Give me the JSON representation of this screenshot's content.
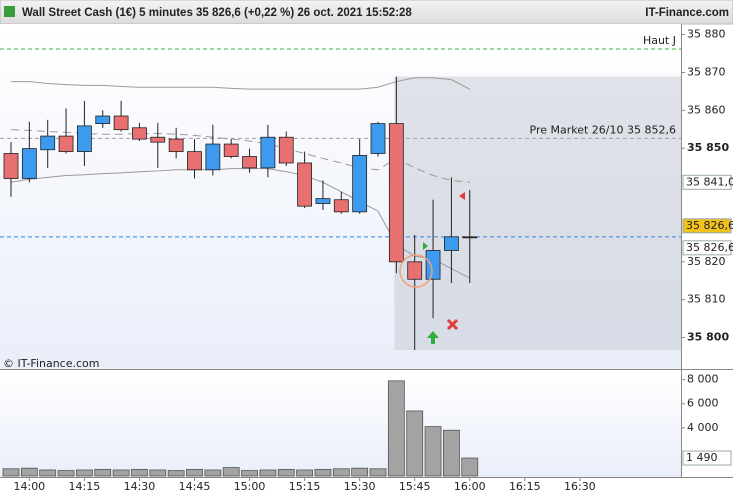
{
  "header": {
    "title": "Wall Street Cash (1€) 5 minutes 35 826,6 (+0,22 %) 26 oct. 2021 15:52:28",
    "brand": "IT-Finance.com"
  },
  "chart_data": [
    {
      "type": "candlestick",
      "watermark": "© IT-Finance.com",
      "categories": [
        null,
        "14:00",
        null,
        null,
        "14:15",
        null,
        null,
        "14:30",
        null,
        null,
        "14:45",
        null,
        null,
        "15:00",
        null,
        null,
        "15:15",
        null,
        null,
        "15:30",
        null,
        null,
        "15:45",
        null,
        null,
        "16:00",
        null,
        null,
        "16:15",
        null,
        null,
        "16:30",
        null,
        null,
        null,
        null
      ],
      "open": [
        35848.6,
        35842.0,
        35849.6,
        35853.2,
        35849.1,
        35856.5,
        35858.5,
        35855.4,
        35852.9,
        35852.4,
        35849.1,
        35844.3,
        35851.1,
        35847.8,
        35844.8,
        35852.9,
        35846.1,
        35835.4,
        35836.4,
        35833.2,
        35848.6,
        35856.5,
        35820.0,
        35815.4,
        35823.0,
        35826.6,
        null,
        null,
        null,
        null,
        null,
        null,
        null,
        null,
        null,
        null
      ],
      "high": [
        35851.6,
        35857.0,
        35857.5,
        35860.5,
        35862.5,
        35860.0,
        35862.5,
        35856.7,
        35856.7,
        35855.4,
        35852.4,
        35856.2,
        35852.4,
        35849.9,
        35856.2,
        35854.4,
        35849.1,
        35841.5,
        35838.5,
        35852.4,
        35857.0,
        35868.9,
        35827.1,
        35836.4,
        35842.3,
        35839.0,
        null,
        null,
        null,
        null,
        null,
        null,
        null,
        null,
        null,
        null
      ],
      "low": [
        35837.2,
        35841.0,
        35844.8,
        35848.6,
        35845.3,
        35855.4,
        35854.4,
        35851.9,
        35844.8,
        35847.3,
        35842.0,
        35842.8,
        35847.3,
        35843.5,
        35842.3,
        35845.3,
        35834.2,
        35833.7,
        35832.7,
        35832.7,
        35847.8,
        35817.0,
        35796.7,
        35805.1,
        35814.4,
        35814.4,
        null,
        null,
        null,
        null,
        null,
        null,
        null,
        null,
        null,
        null
      ],
      "close": [
        35842.0,
        35849.9,
        35853.2,
        35849.1,
        35855.9,
        35858.5,
        35854.9,
        35852.4,
        35851.6,
        35849.1,
        35844.3,
        35851.1,
        35847.8,
        35844.8,
        35852.9,
        35846.1,
        35834.7,
        35836.7,
        35833.2,
        35848.1,
        35856.5,
        35820.0,
        35815.4,
        35823.0,
        35826.6,
        35826.6,
        null,
        null,
        null,
        null,
        null,
        null,
        null,
        null,
        null,
        null
      ],
      "up_color": "#3d9bef",
      "down_color": "#e87070",
      "flat_color": "#222222",
      "overlays": [
        {
          "color": "#9a9a9a",
          "dashed": false,
          "values": [
            35867.6,
            35867.6,
            35867.1,
            35866.8,
            35866.6,
            35866.6,
            35866.3,
            35866.1,
            35866.1,
            35866.1,
            35866.1,
            35866.1,
            35865.8,
            35865.6,
            35865.6,
            35865.6,
            35865.6,
            35865.6,
            35865.6,
            35865.6,
            35866.1,
            35867.6,
            35868.6,
            35868.6,
            35868.1,
            35865.6,
            null,
            null,
            null,
            null,
            null,
            null,
            null,
            null,
            null,
            null
          ]
        },
        {
          "color": "#9a9a9a",
          "dashed": true,
          "values": [
            35854.9,
            35854.7,
            35854.4,
            35854.2,
            35853.9,
            35853.7,
            35853.7,
            35853.9,
            35853.9,
            35853.7,
            35853.4,
            35852.9,
            35852.4,
            35851.9,
            35851.1,
            35849.9,
            35848.6,
            35847.3,
            35846.1,
            35844.8,
            35844.3,
            35847.3,
            35844.8,
            35842.8,
            35841.5,
            35841.0,
            null,
            null,
            null,
            null,
            null,
            null,
            null,
            null,
            null,
            null
          ]
        },
        {
          "color": "#9a9a9a",
          "dashed": false,
          "values": [
            35841.0,
            35841.8,
            35842.3,
            35842.8,
            35843.0,
            35843.3,
            35843.5,
            35843.8,
            35844.0,
            35844.3,
            35844.3,
            35844.3,
            35844.6,
            35844.6,
            35844.6,
            35843.8,
            35842.8,
            35841.0,
            35838.5,
            35835.9,
            35833.4,
            35824.5,
            35821.5,
            35820.8,
            35818.2,
            35815.7,
            null,
            null,
            null,
            null,
            null,
            null,
            null,
            null,
            null,
            null
          ]
        }
      ],
      "ylim": [
        35791.7,
        35882.8
      ],
      "yticks": [
        {
          "value": 35880,
          "label": "35 880"
        },
        {
          "value": 35870,
          "label": "35 870"
        },
        {
          "value": 35860,
          "label": "35 860"
        },
        {
          "value": 35850,
          "label": "35 850"
        },
        {
          "value": 35820,
          "label": "35 820"
        },
        {
          "value": 35810,
          "label": "35 810"
        },
        {
          "value": 35800,
          "label": "35 800"
        }
      ],
      "reference_lines": [
        {
          "value": 35876.2,
          "label": "Haut J",
          "color": "#3cb043"
        },
        {
          "value": 35852.6,
          "label": "Pre Market 26/10 35 852,6",
          "color": "#a0a0a0"
        },
        {
          "value": 35826.6,
          "color": "#2f86e8"
        }
      ],
      "price_markers": [
        {
          "value": 35841.0,
          "label": "35 841,0",
          "background": "#ffffff",
          "text_color": "#6a7a8a"
        },
        {
          "value": 35826.6,
          "label": "35 826,6",
          "background": "#f2c21b",
          "text_color": "#222222"
        },
        {
          "value": 35826.6,
          "label": "35 826,6",
          "background": "#ffffff",
          "text_color": "#2f86e8"
        }
      ]
    },
    {
      "type": "bar",
      "color": "#a3a3a3",
      "values": [
        600,
        650,
        500,
        450,
        500,
        550,
        500,
        550,
        500,
        450,
        550,
        500,
        700,
        450,
        500,
        550,
        500,
        550,
        600,
        650,
        600,
        7900,
        5400,
        4100,
        3800,
        1490,
        null,
        null,
        null,
        null,
        null,
        null,
        null,
        null,
        null,
        null
      ],
      "ylim": [
        0,
        8800
      ],
      "yticks": [
        {
          "value": 8000,
          "label": "8 000"
        },
        {
          "value": 6000,
          "label": "6 000"
        },
        {
          "value": 4000,
          "label": "4 000"
        }
      ],
      "price_markers": [
        {
          "value": 1490,
          "label": "1 490",
          "background": "#ffffff",
          "text_color": "#6a7a8a"
        }
      ]
    }
  ]
}
